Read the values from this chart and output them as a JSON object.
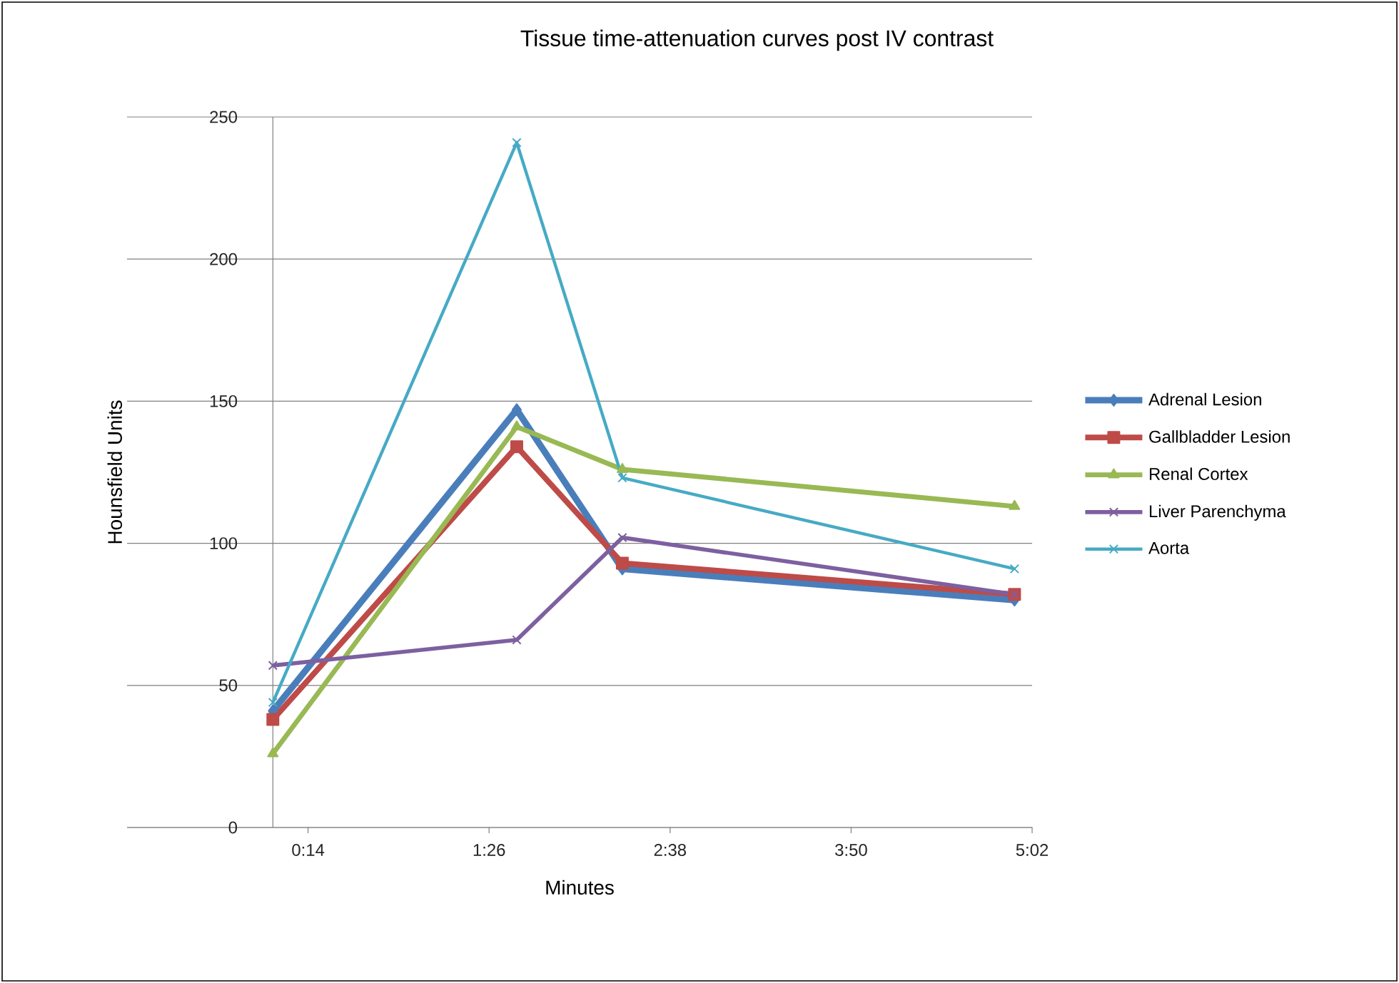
{
  "chart_data": {
    "type": "line",
    "title": "Tissue time-attenuation curves post IV contrast",
    "xlabel": "Minutes",
    "ylabel": "Hounsfield Units",
    "xlim": [
      -58,
      302
    ],
    "xticks": [
      {
        "value": 14,
        "label": "0:14"
      },
      {
        "value": 86,
        "label": "1:26"
      },
      {
        "value": 158,
        "label": "2:38"
      },
      {
        "value": 230,
        "label": "3:50"
      },
      {
        "value": 302,
        "label": "5:02"
      }
    ],
    "ylim": [
      0,
      250
    ],
    "yticks": [
      0,
      50,
      100,
      150,
      200,
      250
    ],
    "grid": "y",
    "legend": "right",
    "x": [
      0,
      97,
      139,
      295
    ],
    "series": [
      {
        "name": "Adrenal Lesion",
        "color": "#4a7ebb",
        "marker": "diamond",
        "values": [
          41,
          147,
          91,
          80
        ]
      },
      {
        "name": "Gallbladder Lesion",
        "color": "#be4b48",
        "marker": "square",
        "values": [
          38,
          134,
          93,
          82
        ]
      },
      {
        "name": "Renal Cortex",
        "color": "#98b954",
        "marker": "triangle",
        "values": [
          26,
          141,
          126,
          113
        ]
      },
      {
        "name": "Liver Parenchyma",
        "color": "#7d60a0",
        "marker": "cross",
        "values": [
          57,
          66,
          102,
          82
        ]
      },
      {
        "name": "Aorta",
        "color": "#46aac5",
        "marker": "cross",
        "values": [
          44,
          241,
          123,
          91
        ]
      }
    ]
  }
}
